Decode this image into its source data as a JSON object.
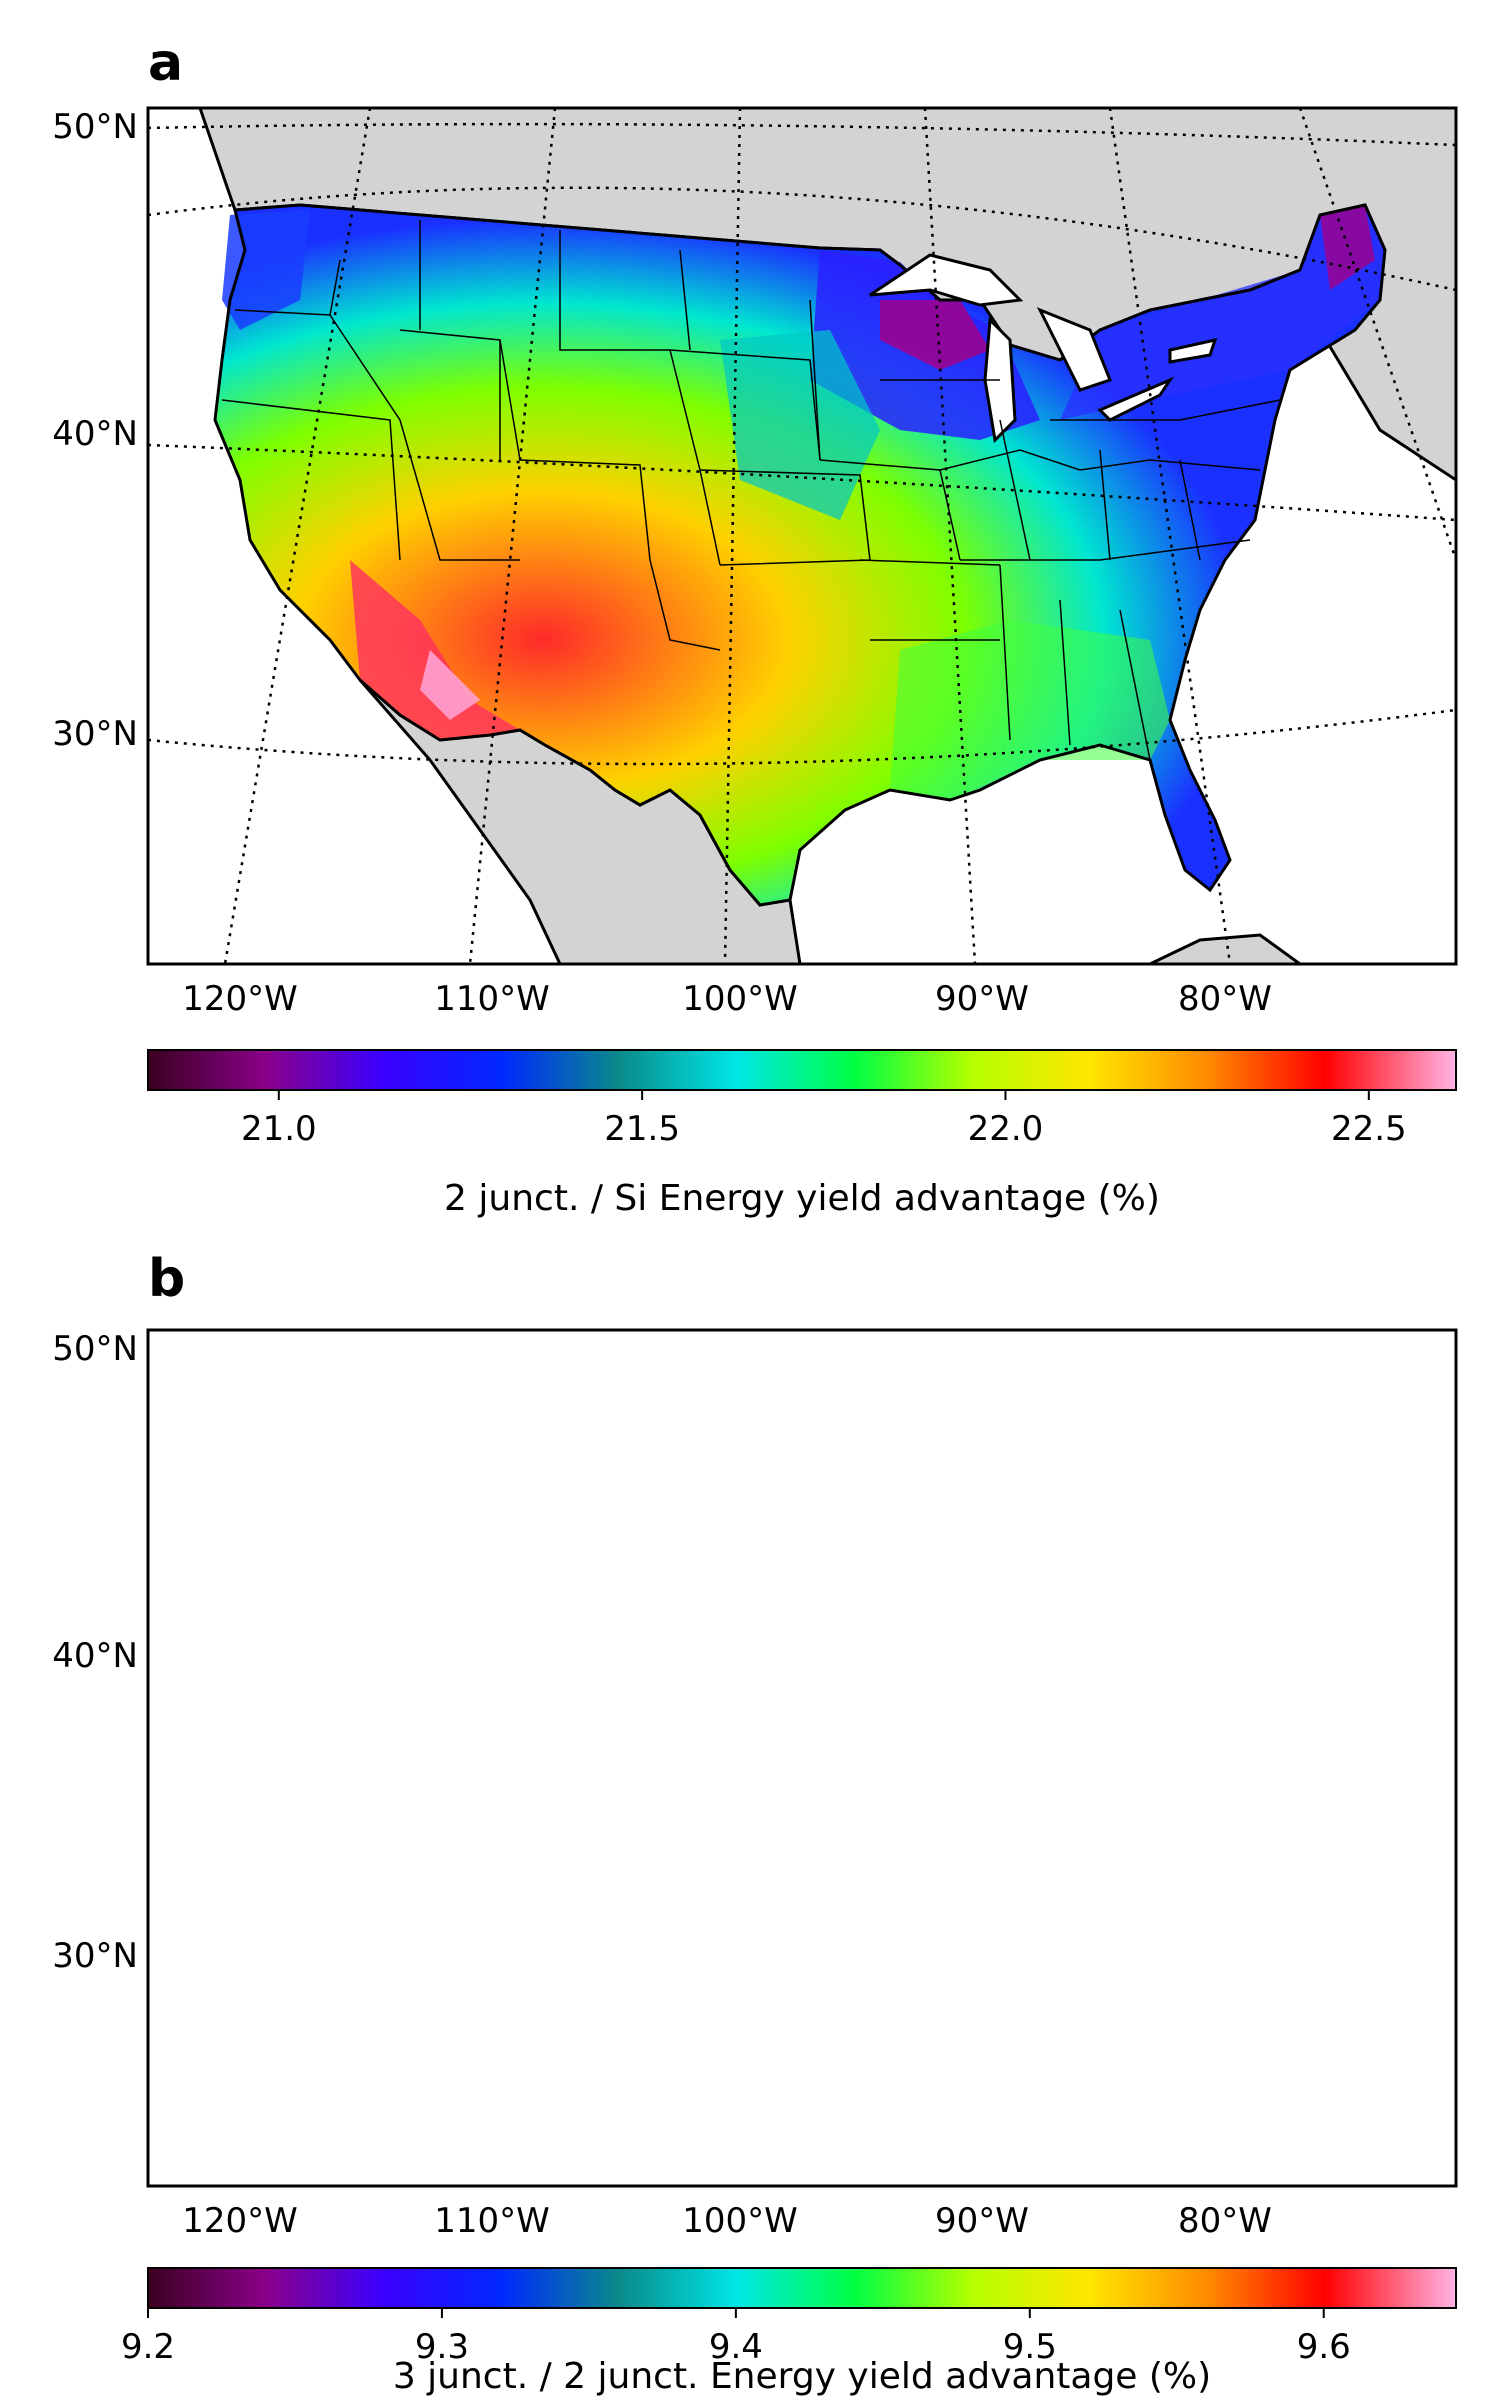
{
  "panels": [
    {
      "letter": "a",
      "lat_labels": [
        "50°N",
        "40°N",
        "30°N"
      ],
      "lon_labels": [
        "120°W",
        "110°W",
        "100°W",
        "90°W",
        "80°W"
      ],
      "colorbar": {
        "min": 20.82,
        "max": 22.62,
        "ticks": [
          21.0,
          21.5,
          22.0,
          22.5
        ],
        "tick_labels": [
          "21.0",
          "21.5",
          "22.0",
          "22.5"
        ],
        "label": "2 junct. / Si   Energy yield advantage (%)"
      }
    },
    {
      "letter": "b",
      "lat_labels": [
        "50°N",
        "40°N",
        "30°N"
      ],
      "lon_labels": [
        "120°W",
        "110°W",
        "100°W",
        "90°W",
        "80°W"
      ],
      "colorbar": {
        "min": 9.2,
        "max": 9.645,
        "ticks": [
          9.2,
          9.3,
          9.4,
          9.5,
          9.6
        ],
        "tick_labels": [
          "9.2",
          "9.3",
          "9.4",
          "9.5",
          "9.6"
        ],
        "label": "3 junct. / 2 junct.   Energy yield advantage (%)"
      }
    }
  ],
  "colormap": [
    "#3a0020",
    "#8a008a",
    "#3a00ff",
    "#0028ff",
    "#0a8a8a",
    "#00e6e6",
    "#00ff44",
    "#b4ff00",
    "#ffe600",
    "#ff8a00",
    "#ff0000",
    "#ffb4e6"
  ]
}
